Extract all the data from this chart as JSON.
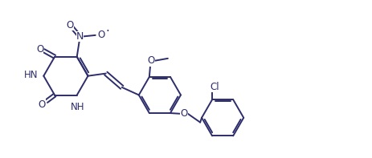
{
  "bg_color": "#ffffff",
  "line_color": "#2d2d6b",
  "bond_lw": 1.4,
  "font_size": 8.5,
  "fig_width": 4.63,
  "fig_height": 1.97,
  "dpi": 100,
  "xlim": [
    0,
    10.5
  ],
  "ylim": [
    -0.3,
    4.8
  ]
}
